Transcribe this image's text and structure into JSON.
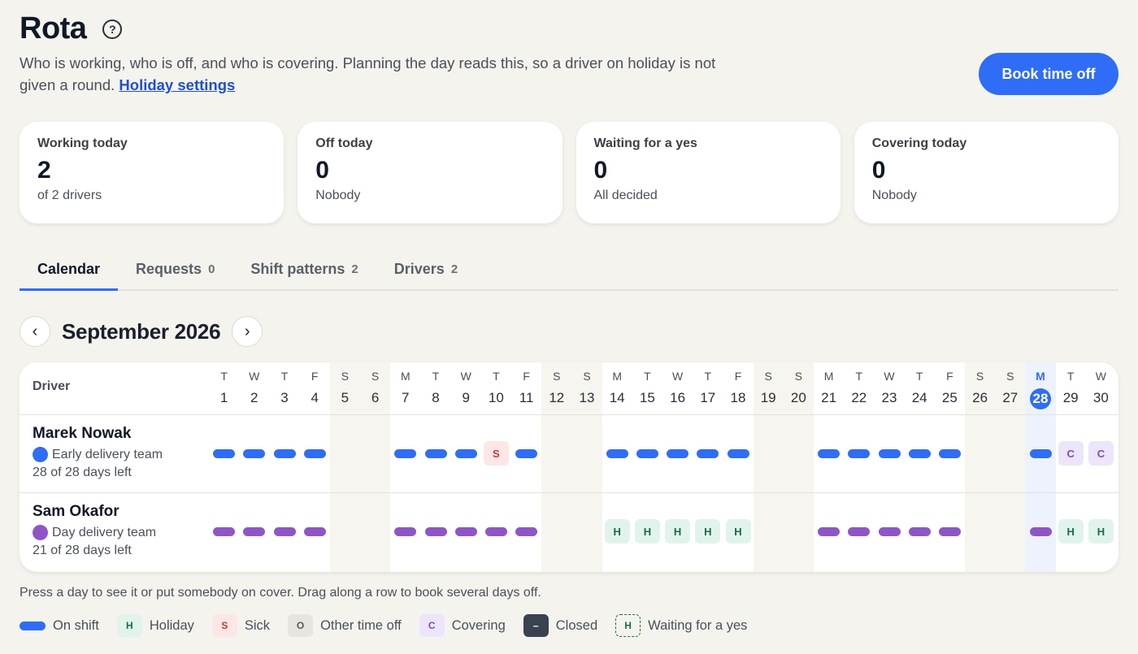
{
  "header": {
    "title": "Rota",
    "help_icon": "question-circle-icon",
    "intro": "Who is working, who is off, and who is covering. Planning the day reads this, so a driver on holiday is not given a round.",
    "settings_link": "Holiday settings",
    "book_button": "Book time off"
  },
  "stats": [
    {
      "label": "Working today",
      "value": "2",
      "sub": "of 2 drivers"
    },
    {
      "label": "Off today",
      "value": "0",
      "sub": "Nobody"
    },
    {
      "label": "Waiting for a yes",
      "value": "0",
      "sub": "All decided"
    },
    {
      "label": "Covering today",
      "value": "0",
      "sub": "Nobody"
    }
  ],
  "tabs": [
    {
      "label": "Calendar",
      "count": "",
      "active": true
    },
    {
      "label": "Requests",
      "count": "0"
    },
    {
      "label": "Shift patterns",
      "count": "2"
    },
    {
      "label": "Drivers",
      "count": "2"
    }
  ],
  "calendar": {
    "month": "September 2026",
    "prev_icon": "chevron-left-icon",
    "next_icon": "chevron-right-icon",
    "driver_header": "Driver",
    "today": 28,
    "days": [
      {
        "l": "T",
        "n": "1"
      },
      {
        "l": "W",
        "n": "2"
      },
      {
        "l": "T",
        "n": "3"
      },
      {
        "l": "F",
        "n": "4"
      },
      {
        "l": "S",
        "n": "5"
      },
      {
        "l": "S",
        "n": "6"
      },
      {
        "l": "M",
        "n": "7"
      },
      {
        "l": "T",
        "n": "8"
      },
      {
        "l": "W",
        "n": "9"
      },
      {
        "l": "T",
        "n": "10"
      },
      {
        "l": "F",
        "n": "11"
      },
      {
        "l": "S",
        "n": "12"
      },
      {
        "l": "S",
        "n": "13"
      },
      {
        "l": "M",
        "n": "14"
      },
      {
        "l": "T",
        "n": "15"
      },
      {
        "l": "W",
        "n": "16"
      },
      {
        "l": "T",
        "n": "17"
      },
      {
        "l": "F",
        "n": "18"
      },
      {
        "l": "S",
        "n": "19"
      },
      {
        "l": "S",
        "n": "20"
      },
      {
        "l": "M",
        "n": "21"
      },
      {
        "l": "T",
        "n": "22"
      },
      {
        "l": "W",
        "n": "23"
      },
      {
        "l": "T",
        "n": "24"
      },
      {
        "l": "F",
        "n": "25"
      },
      {
        "l": "S",
        "n": "26"
      },
      {
        "l": "S",
        "n": "27"
      },
      {
        "l": "M",
        "n": "28"
      },
      {
        "l": "T",
        "n": "29"
      },
      {
        "l": "W",
        "n": "30"
      }
    ],
    "drivers": [
      {
        "name": "Marek Nowak",
        "team": "Early delivery team",
        "team_color": "#2f6df6",
        "left": "28 of 28 days left",
        "cells": [
          "shift",
          "shift",
          "shift",
          "shift",
          "",
          "",
          "shift",
          "shift",
          "shift",
          "S",
          "shift",
          "",
          "",
          "shift",
          "shift",
          "shift",
          "shift",
          "shift",
          "",
          "",
          "shift",
          "shift",
          "shift",
          "shift",
          "shift",
          "",
          "",
          "shift",
          "C",
          "C"
        ]
      },
      {
        "name": "Sam Okafor",
        "team": "Day delivery team",
        "team_color": "#8e55c7",
        "left": "21 of 28 days left",
        "cells": [
          "shift",
          "shift",
          "shift",
          "shift",
          "",
          "",
          "shift",
          "shift",
          "shift",
          "shift",
          "shift",
          "",
          "",
          "H",
          "H",
          "H",
          "H",
          "H",
          "",
          "",
          "shift",
          "shift",
          "shift",
          "shift",
          "shift",
          "",
          "",
          "shift",
          "H",
          "H"
        ]
      }
    ]
  },
  "hint": "Press a day to see it or put somebody on cover. Drag along a row to book several days off.",
  "legend": [
    {
      "type": "shift",
      "label": "On shift"
    },
    {
      "type": "holiday",
      "letter": "H",
      "label": "Holiday"
    },
    {
      "type": "sick",
      "letter": "S",
      "label": "Sick"
    },
    {
      "type": "other",
      "letter": "O",
      "label": "Other time off"
    },
    {
      "type": "cover",
      "letter": "C",
      "label": "Covering"
    },
    {
      "type": "closed",
      "letter": "–",
      "label": "Closed"
    },
    {
      "type": "wait",
      "letter": "H",
      "label": "Waiting for a yes"
    }
  ]
}
